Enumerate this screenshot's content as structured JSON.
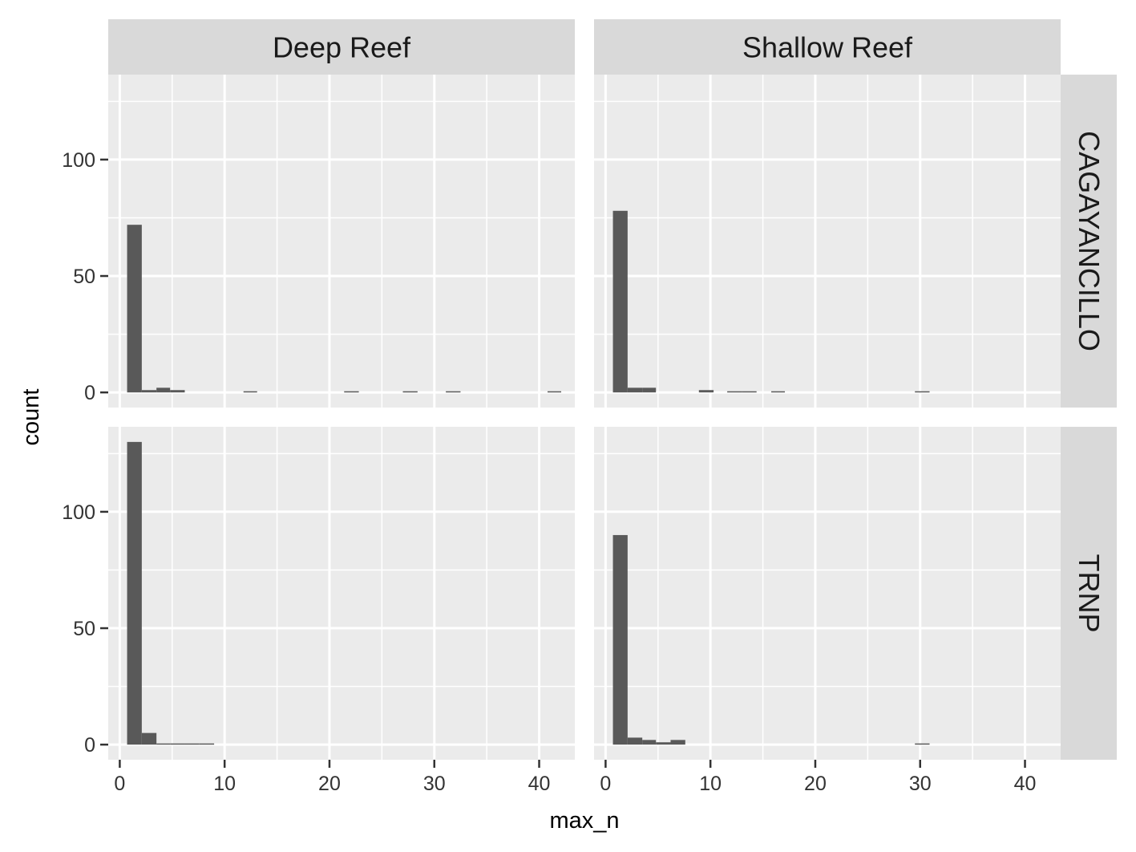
{
  "chart_data": {
    "type": "bar",
    "subtype": "histogram",
    "xlabel": "max_n",
    "ylabel": "count",
    "xlim": [
      -1.1,
      43.4
    ],
    "ylim": [
      -6.5,
      136.5
    ],
    "x_ticks": [
      0,
      10,
      20,
      30,
      40
    ],
    "y_ticks": [
      0,
      50,
      100
    ],
    "grid": true,
    "bin_width": 1.37,
    "facet_columns": [
      "Deep Reef",
      "Shallow Reef"
    ],
    "facet_rows": [
      "CAGAYANCILLO",
      "TRNP"
    ],
    "panels": [
      {
        "row": "CAGAYANCILLO",
        "col": "Deep Reef",
        "bins": [
          {
            "x0": 0.7,
            "x1": 2.1,
            "count": 72
          },
          {
            "x0": 2.1,
            "x1": 3.5,
            "count": 1
          },
          {
            "x0": 3.5,
            "x1": 4.8,
            "count": 2
          },
          {
            "x0": 4.8,
            "x1": 6.2,
            "count": 1
          },
          {
            "x0": 11.8,
            "x1": 13.1,
            "count": 0.5
          },
          {
            "x0": 21.4,
            "x1": 22.8,
            "count": 0.5
          },
          {
            "x0": 27.0,
            "x1": 28.4,
            "count": 0.5
          },
          {
            "x0": 31.1,
            "x1": 32.5,
            "count": 0.5
          },
          {
            "x0": 40.8,
            "x1": 42.1,
            "count": 0.5
          }
        ]
      },
      {
        "row": "CAGAYANCILLO",
        "col": "Shallow Reef",
        "bins": [
          {
            "x0": 0.7,
            "x1": 2.1,
            "count": 78
          },
          {
            "x0": 2.1,
            "x1": 3.5,
            "count": 2
          },
          {
            "x0": 3.5,
            "x1": 4.8,
            "count": 2
          },
          {
            "x0": 8.9,
            "x1": 10.3,
            "count": 1
          },
          {
            "x0": 11.6,
            "x1": 13.0,
            "count": 0.5
          },
          {
            "x0": 13.0,
            "x1": 14.4,
            "count": 0.5
          },
          {
            "x0": 15.8,
            "x1": 17.1,
            "count": 0.5
          },
          {
            "x0": 29.5,
            "x1": 30.9,
            "count": 0.5
          }
        ]
      },
      {
        "row": "TRNP",
        "col": "Deep Reef",
        "bins": [
          {
            "x0": 0.7,
            "x1": 2.1,
            "count": 130
          },
          {
            "x0": 2.1,
            "x1": 3.5,
            "count": 5
          },
          {
            "x0": 3.5,
            "x1": 4.8,
            "count": 0.5
          },
          {
            "x0": 4.8,
            "x1": 6.2,
            "count": 0.5
          },
          {
            "x0": 6.2,
            "x1": 7.6,
            "count": 0.5
          },
          {
            "x0": 7.6,
            "x1": 9.0,
            "count": 0.5
          }
        ]
      },
      {
        "row": "TRNP",
        "col": "Shallow Reef",
        "bins": [
          {
            "x0": 0.7,
            "x1": 2.1,
            "count": 90
          },
          {
            "x0": 2.1,
            "x1": 3.5,
            "count": 3
          },
          {
            "x0": 3.5,
            "x1": 4.8,
            "count": 2
          },
          {
            "x0": 4.8,
            "x1": 6.2,
            "count": 1
          },
          {
            "x0": 6.2,
            "x1": 7.6,
            "count": 2
          },
          {
            "x0": 29.5,
            "x1": 30.9,
            "count": 0.5
          }
        ]
      }
    ],
    "colors": {
      "panel_background": "#ebebeb",
      "strip_background": "#d9d9d9",
      "grid": "#ffffff",
      "bar_fill": "#595959",
      "tick": "#333333"
    }
  }
}
